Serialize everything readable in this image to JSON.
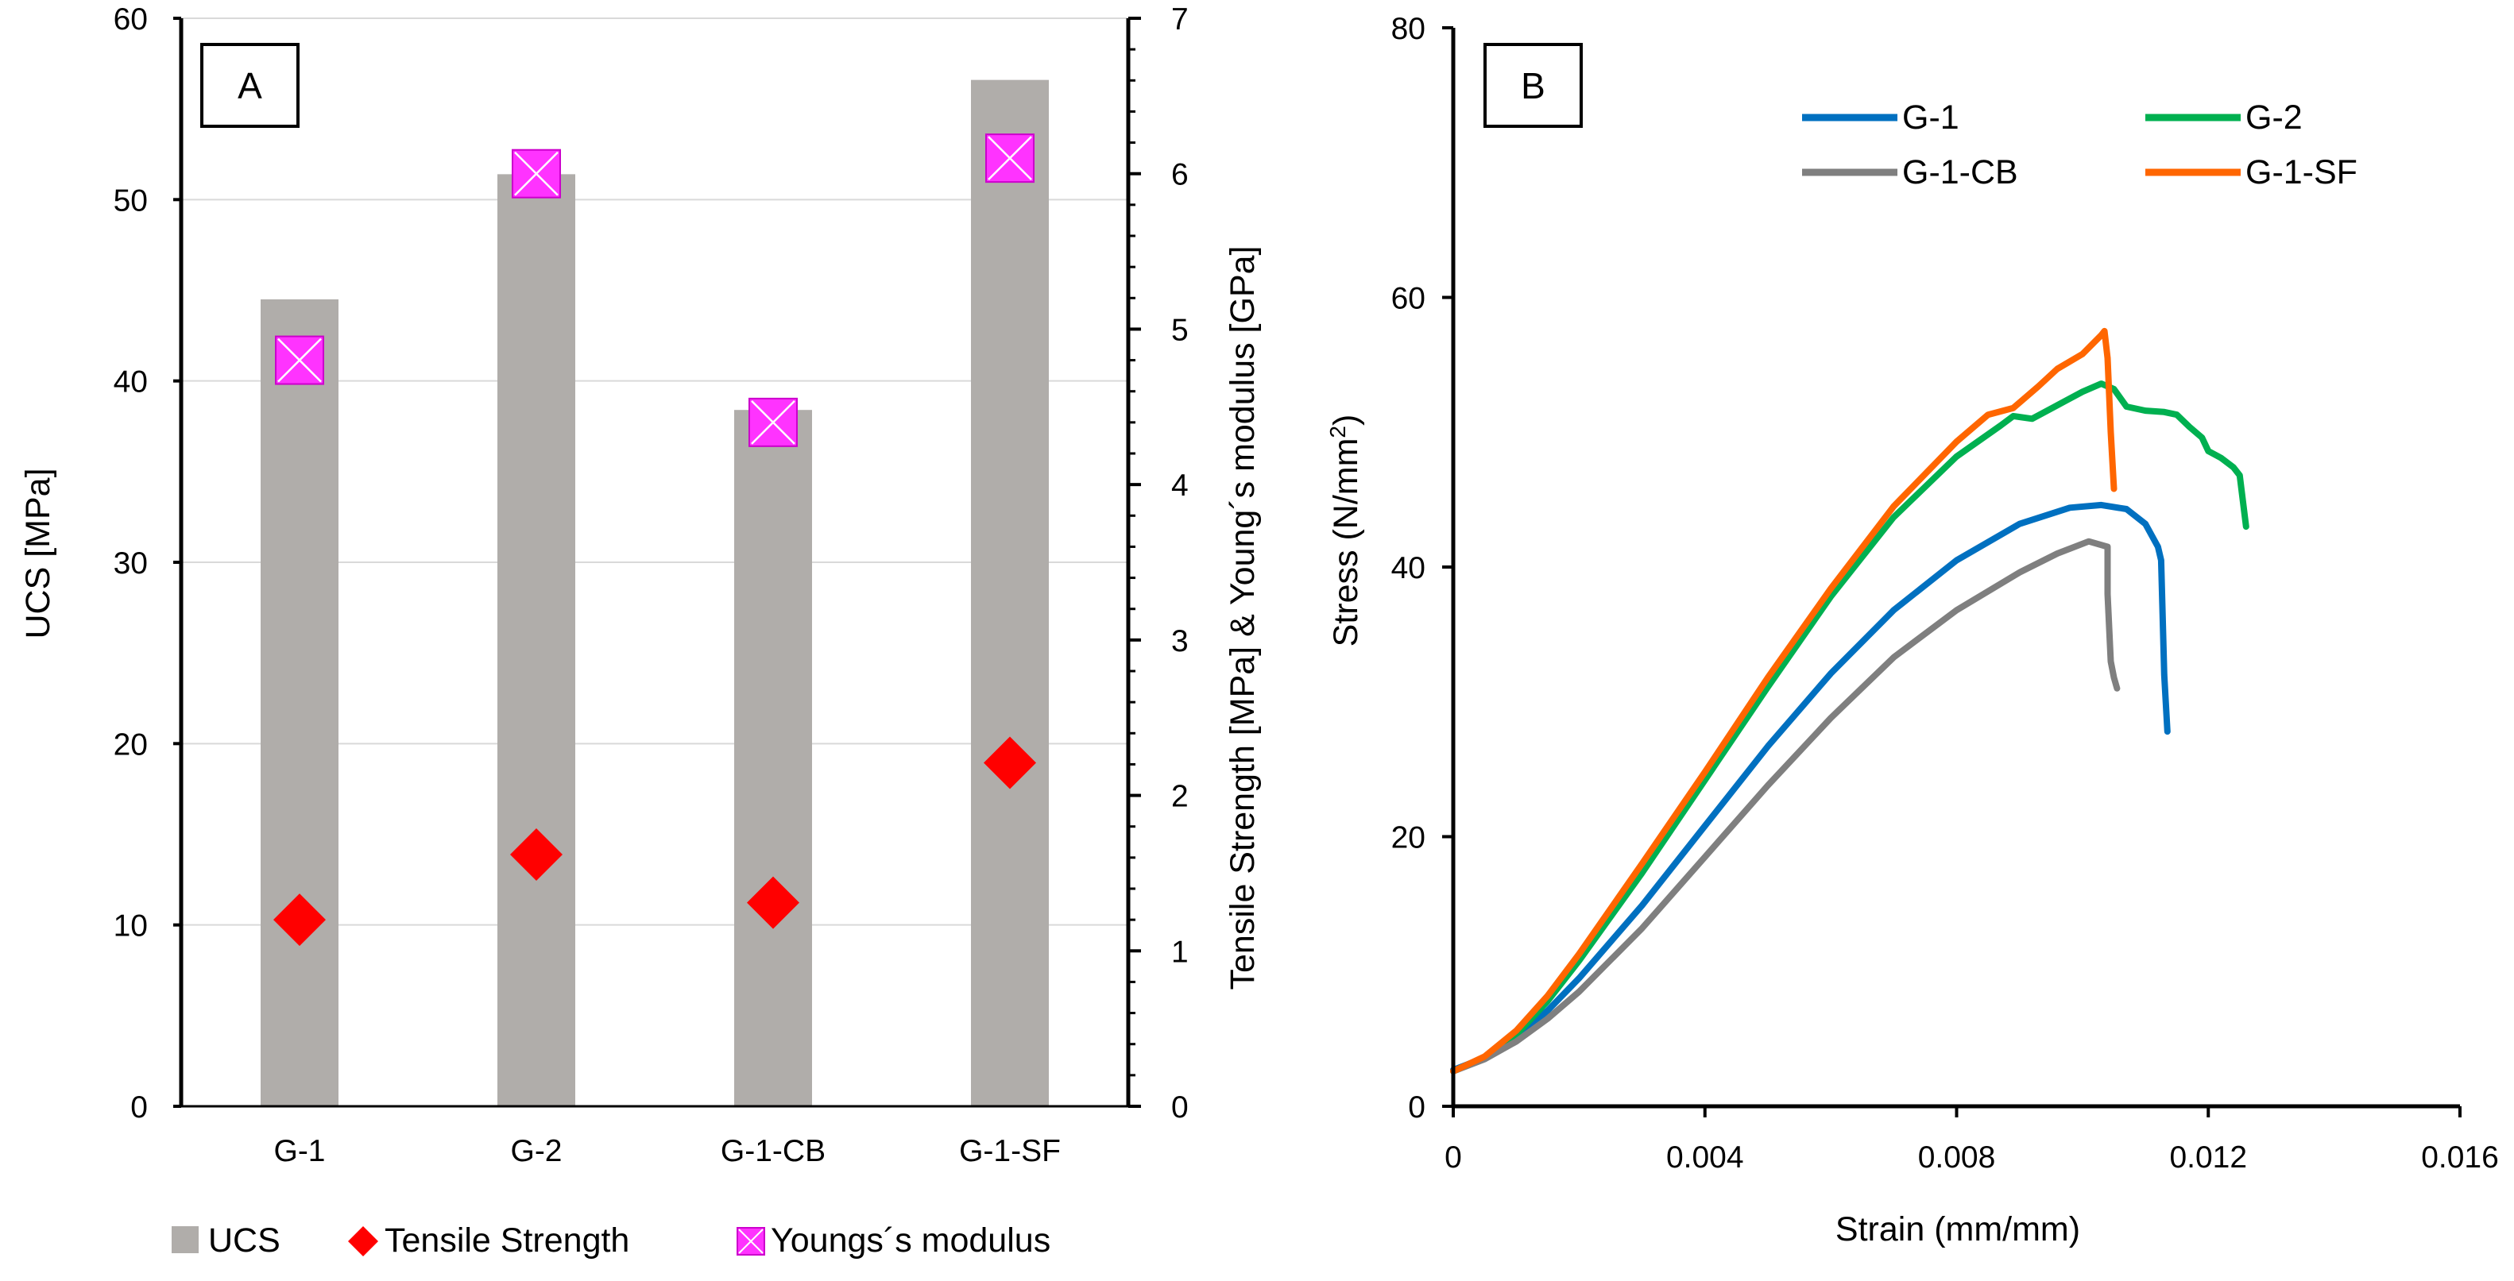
{
  "chart_data": [
    {
      "type": "bar",
      "panel_label": "A",
      "categories": [
        "G-1",
        "G-2",
        "G-1-CB",
        "G-1-SF"
      ],
      "primary_axis": {
        "label": "UCS [MPa]",
        "range": [
          0,
          60
        ],
        "ticks": [
          0,
          10,
          20,
          30,
          40,
          50,
          60
        ]
      },
      "secondary_axis": {
        "label": "Tensile Strength [MPa] & Young´s modulus [GPa]",
        "range": [
          0,
          7
        ],
        "ticks": [
          0,
          1,
          2,
          3,
          4,
          5,
          6,
          7
        ]
      },
      "grid": true,
      "legend_position": "bottom",
      "series": [
        {
          "name": "UCS",
          "kind": "bar",
          "axis": "primary",
          "color": "#b0adaa",
          "values": [
            44.5,
            51.4,
            38.4,
            56.6
          ]
        },
        {
          "name": "Tensile Strength",
          "kind": "marker",
          "marker": "diamond",
          "axis": "secondary",
          "color": "#ff0000",
          "values": [
            1.2,
            1.62,
            1.31,
            2.21
          ]
        },
        {
          "name": "Youngs´s modulus",
          "kind": "marker",
          "marker": "crossed-square",
          "axis": "secondary",
          "color": "#ff33ff",
          "values": [
            4.8,
            6.0,
            4.4,
            6.1
          ]
        }
      ]
    },
    {
      "type": "line",
      "panel_label": "B",
      "xlabel": "Strain (mm/mm)",
      "ylabel": "Stress (N/mm",
      "ylabel_sup": "2",
      "ylabel_end": ")",
      "xlim": [
        0,
        0.016
      ],
      "ylim": [
        0,
        80
      ],
      "xticks": [
        0,
        0.004,
        0.008,
        0.012,
        0.016
      ],
      "xtick_labels": [
        "0",
        "0.004",
        "0.008",
        "0.012",
        "0.016"
      ],
      "yticks": [
        0,
        20,
        40,
        60,
        80
      ],
      "legend_position": "top-right",
      "series": [
        {
          "name": "G-1",
          "color": "#0070c0",
          "points": [
            [
              0,
              2.7
            ],
            [
              0.0005,
              3.6
            ],
            [
              0.001,
              5.1
            ],
            [
              0.0015,
              7.1
            ],
            [
              0.002,
              9.5
            ],
            [
              0.003,
              14.9
            ],
            [
              0.004,
              20.8
            ],
            [
              0.005,
              26.7
            ],
            [
              0.006,
              32.1
            ],
            [
              0.007,
              36.8
            ],
            [
              0.008,
              40.5
            ],
            [
              0.009,
              43.2
            ],
            [
              0.0098,
              44.4
            ],
            [
              0.0103,
              44.6
            ],
            [
              0.0107,
              44.3
            ],
            [
              0.011,
              43.2
            ],
            [
              0.0112,
              41.5
            ],
            [
              0.01125,
              40.5
            ],
            [
              0.0113,
              32
            ],
            [
              0.01135,
              27.8
            ]
          ]
        },
        {
          "name": "G-2",
          "color": "#00b050",
          "points": [
            [
              0,
              2.6
            ],
            [
              0.0005,
              3.6
            ],
            [
              0.001,
              5.3
            ],
            [
              0.0015,
              7.8
            ],
            [
              0.002,
              10.8
            ],
            [
              0.003,
              17.3
            ],
            [
              0.004,
              24.2
            ],
            [
              0.005,
              31.1
            ],
            [
              0.006,
              37.8
            ],
            [
              0.007,
              43.7
            ],
            [
              0.008,
              48.2
            ],
            [
              0.0087,
              50.5
            ],
            [
              0.0089,
              51.2
            ],
            [
              0.0092,
              51.0
            ],
            [
              0.0096,
              52.0
            ],
            [
              0.01,
              53.0
            ],
            [
              0.0103,
              53.6
            ],
            [
              0.0105,
              53.2
            ],
            [
              0.0107,
              51.9
            ],
            [
              0.011,
              51.6
            ],
            [
              0.0113,
              51.5
            ],
            [
              0.0115,
              51.3
            ],
            [
              0.0117,
              50.4
            ],
            [
              0.0119,
              49.6
            ],
            [
              0.012,
              48.6
            ],
            [
              0.0122,
              48.1
            ],
            [
              0.0124,
              47.4
            ],
            [
              0.0125,
              46.8
            ],
            [
              0.0126,
              43
            ]
          ]
        },
        {
          "name": "G-1-CB",
          "color": "#7f7f7f",
          "points": [
            [
              0,
              2.6
            ],
            [
              0.0005,
              3.5
            ],
            [
              0.001,
              4.8
            ],
            [
              0.0015,
              6.5
            ],
            [
              0.002,
              8.5
            ],
            [
              0.003,
              13.2
            ],
            [
              0.004,
              18.5
            ],
            [
              0.005,
              23.8
            ],
            [
              0.006,
              28.8
            ],
            [
              0.007,
              33.3
            ],
            [
              0.008,
              36.8
            ],
            [
              0.009,
              39.6
            ],
            [
              0.0096,
              41.0
            ],
            [
              0.0101,
              41.9
            ],
            [
              0.0104,
              41.5
            ],
            [
              0.0104,
              38
            ],
            [
              0.01045,
              33
            ],
            [
              0.0105,
              31.8
            ],
            [
              0.01055,
              31
            ]
          ]
        },
        {
          "name": "G-1-SF",
          "color": "#ff6600",
          "points": [
            [
              0,
              2.6
            ],
            [
              0.0005,
              3.7
            ],
            [
              0.001,
              5.6
            ],
            [
              0.0015,
              8.2
            ],
            [
              0.002,
              11.3
            ],
            [
              0.003,
              18.0
            ],
            [
              0.004,
              24.8
            ],
            [
              0.005,
              31.8
            ],
            [
              0.006,
              38.4
            ],
            [
              0.007,
              44.5
            ],
            [
              0.008,
              49.3
            ],
            [
              0.0085,
              51.3
            ],
            [
              0.0089,
              51.8
            ],
            [
              0.0093,
              53.4
            ],
            [
              0.0096,
              54.7
            ],
            [
              0.01,
              55.8
            ],
            [
              0.0103,
              57.2
            ],
            [
              0.01035,
              57.5
            ],
            [
              0.0104,
              55.5
            ],
            [
              0.01045,
              50
            ],
            [
              0.0105,
              45.8
            ]
          ]
        }
      ]
    }
  ]
}
